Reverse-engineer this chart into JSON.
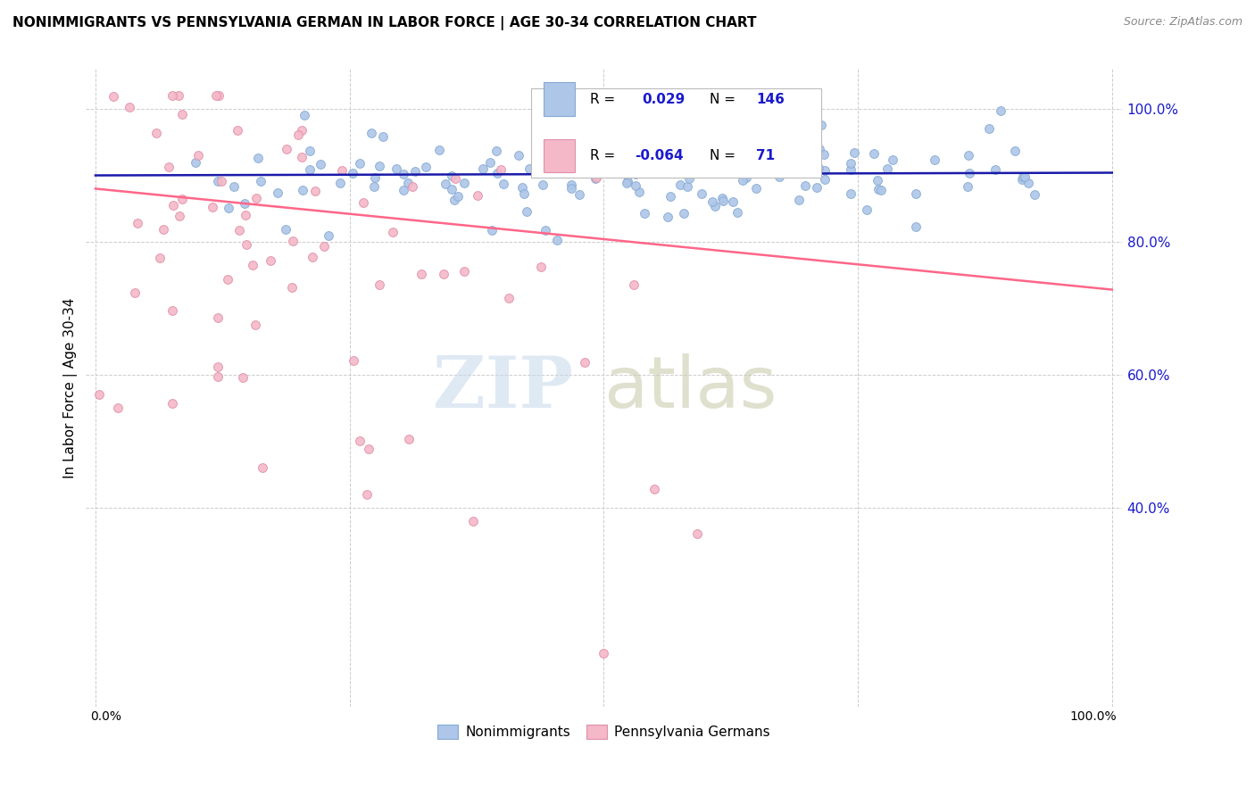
{
  "title": "NONIMMIGRANTS VS PENNSYLVANIA GERMAN IN LABOR FORCE | AGE 30-34 CORRELATION CHART",
  "source": "Source: ZipAtlas.com",
  "ylabel": "In Labor Force | Age 30-34",
  "right_yticks": [
    "40.0%",
    "60.0%",
    "80.0%",
    "100.0%"
  ],
  "right_ytick_vals": [
    0.4,
    0.6,
    0.8,
    1.0
  ],
  "legend_r_blue": "0.029",
  "legend_n_blue": "146",
  "legend_r_pink": "-0.064",
  "legend_n_pink": "71",
  "blue_scatter_face": "#aec6e8",
  "blue_scatter_edge": "#85aad4",
  "pink_scatter_face": "#f4b8c8",
  "pink_scatter_edge": "#e090a8",
  "blue_line_color": "#1a1aaa",
  "pink_line_color": "#ff6688",
  "legend_text_color": "#1a1acc",
  "watermark_zip_color": "#c5d8ec",
  "watermark_atlas_color": "#c8c8a8",
  "background_color": "#ffffff",
  "grid_color": "#cccccc",
  "seed": 42,
  "nonimm_n": 146,
  "pa_german_n": 71,
  "nonimm_r": 0.029,
  "pa_german_r": -0.064,
  "nonimm_line_x": [
    0.0,
    1.0
  ],
  "nonimm_line_y": [
    0.9,
    0.904
  ],
  "pa_line_x": [
    0.0,
    1.0
  ],
  "pa_line_y": [
    0.88,
    0.728
  ],
  "xlim": [
    -0.01,
    1.01
  ],
  "ylim": [
    0.1,
    1.06
  ]
}
